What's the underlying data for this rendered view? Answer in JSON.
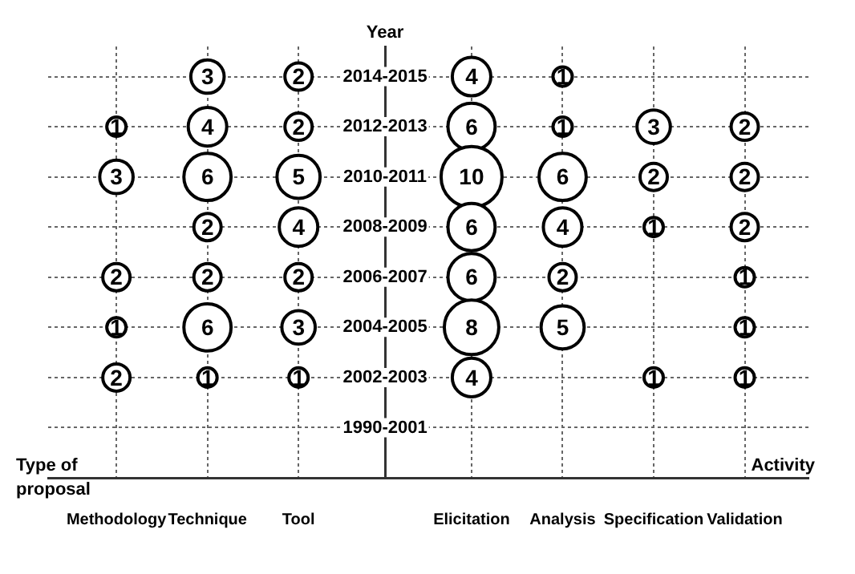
{
  "chart_data": {
    "type": "heatmap",
    "ylabel": "Year",
    "xlabel": "Activity",
    "annotations": [
      "Type of proposal"
    ],
    "categories": [
      "Methodology",
      "Technique",
      "Tool",
      "Elicitation",
      "Analysis",
      "Specification",
      "Validation"
    ],
    "y_categories": [
      "2014-2015",
      "2012-2013",
      "2010-2011",
      "2008-2009",
      "2006-2007",
      "2004-2005",
      "2002-2003",
      "1990-2001"
    ],
    "cells": [
      [
        null,
        3,
        2,
        4,
        1,
        null,
        null
      ],
      [
        1,
        4,
        2,
        6,
        1,
        3,
        2
      ],
      [
        3,
        6,
        5,
        10,
        6,
        2,
        2
      ],
      [
        null,
        2,
        4,
        6,
        4,
        1,
        2
      ],
      [
        2,
        2,
        2,
        6,
        2,
        null,
        1
      ],
      [
        1,
        6,
        3,
        8,
        5,
        null,
        1
      ],
      [
        2,
        1,
        1,
        4,
        null,
        1,
        1
      ],
      [
        null,
        null,
        null,
        null,
        null,
        null,
        null
      ]
    ],
    "data_labels": true,
    "grid": true
  }
}
